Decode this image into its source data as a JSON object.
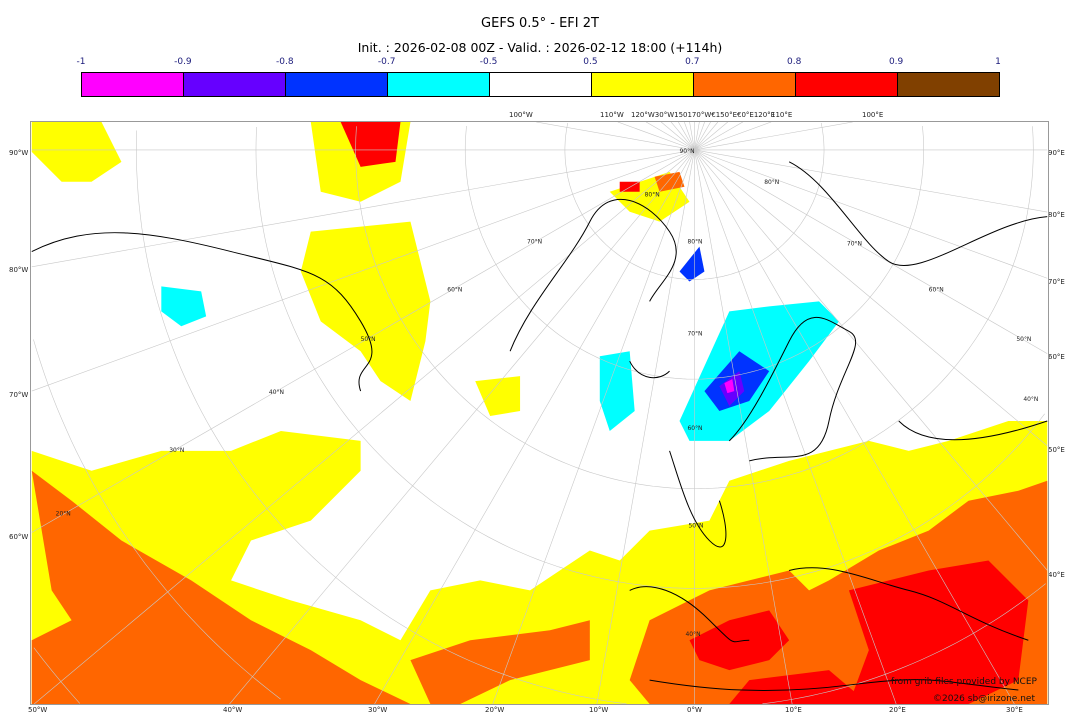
{
  "title": "GEFS 0.5° - EFI 2T",
  "subtitle": "Init. : 2026-02-08 00Z - Valid. : 2026-02-12 18:00 (+114h)",
  "colorbar": {
    "ticks": [
      "-1",
      "-0.9",
      "-0.8",
      "-0.7",
      "-0.5",
      "0.5",
      "0.7",
      "0.8",
      "0.9",
      "1"
    ],
    "colors": [
      "#ff00ff",
      "#6600ff",
      "#0033ff",
      "#00ffff",
      "#ffffff",
      "#ffff00",
      "#ff6600",
      "#ff0000",
      "#804000"
    ]
  },
  "axes": {
    "left": [
      "90°W",
      "80°W",
      "70°W",
      "60°W"
    ],
    "right": [
      "90°E",
      "80°E",
      "70°E",
      "60°E",
      "50°E",
      "40°E"
    ],
    "bottom": [
      "50°W",
      "40°W",
      "30°W",
      "20°W",
      "10°W",
      "0°W",
      "10°E",
      "20°E",
      "30°E"
    ],
    "top": [
      "100°W",
      "110°W",
      "120°W30°W150170°W€150°E€0°E120°E",
      "110°E",
      "100°E"
    ],
    "interior": [
      "90°N",
      "80°N",
      "70°N",
      "60°N",
      "50°N",
      "40°N",
      "30°N",
      "20°N",
      "80°N",
      "70°N",
      "60°N",
      "50°N",
      "40°N",
      "80°N",
      "70°N",
      "60°N",
      "50°N",
      "40°N"
    ]
  },
  "credits": {
    "source": "from grib files provided by NCEP",
    "copyright": "©2026 sb@irizone.net"
  }
}
